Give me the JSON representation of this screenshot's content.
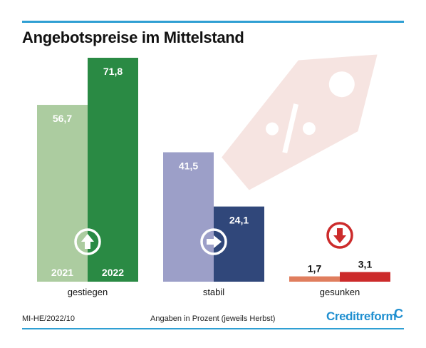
{
  "header": {
    "title": "Angebotspreise im Mittelstand"
  },
  "footer": {
    "code": "MI-HE/2022/10",
    "note": "Angaben in Prozent  (jeweils Herbst)",
    "brand": "Creditreform",
    "brand_mark": "C"
  },
  "icons": {
    "background": "price-tag-percent-icon",
    "gestiegen": "arrow-up-icon",
    "stabil": "arrow-right-icon",
    "gesunken": "arrow-down-icon"
  },
  "colors": {
    "accent_rule": "#2f9fd3",
    "brand": "#1f8fd0",
    "tag_watermark": "#f3dedb"
  },
  "chart_data": {
    "type": "bar",
    "categories": [
      "gestiegen",
      "stabil",
      "gesunken"
    ],
    "series": [
      {
        "name": "2021",
        "values": [
          56.7,
          41.5,
          1.7
        ],
        "colors": [
          "#acccA0",
          "#9c9fc8",
          "#e07e5e"
        ]
      },
      {
        "name": "2022",
        "values": [
          71.8,
          24.1,
          3.1
        ],
        "colors": [
          "#2a8a44",
          "#30477a",
          "#cc2b2b"
        ]
      }
    ],
    "value_labels": [
      [
        "56,7",
        "41,5",
        "1,7"
      ],
      [
        "71,8",
        "24,1",
        "3,1"
      ]
    ],
    "ylim": [
      0,
      71.8
    ],
    "legend": "in bars of first category",
    "grid": false
  }
}
